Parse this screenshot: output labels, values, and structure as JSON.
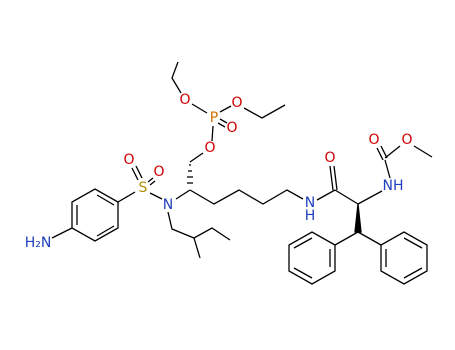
{
  "atoms": [
    {
      "text": "H₂N"
    },
    {
      "text": "S"
    },
    {
      "text": "O"
    },
    {
      "text": "O"
    },
    {
      "text": "N"
    },
    {
      "text": "O"
    },
    {
      "text": "P"
    },
    {
      "text": "O"
    },
    {
      "text": "O"
    },
    {
      "text": "O"
    },
    {
      "text": "N"
    },
    {
      "text": "H"
    },
    {
      "text": "O"
    },
    {
      "text": "NH"
    },
    {
      "text": "O"
    },
    {
      "text": "O"
    }
  ]
}
